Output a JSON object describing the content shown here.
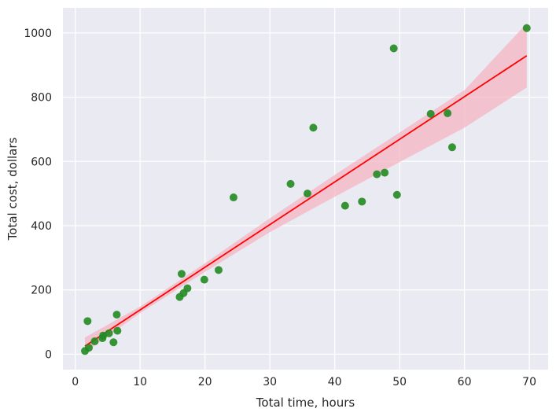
{
  "chart_data": {
    "type": "scatter",
    "title": "",
    "xlabel": "Total time, hours",
    "ylabel": "Total cost, dollars",
    "xlim": [
      -1.9,
      72.9
    ],
    "ylim": [
      -48,
      1078
    ],
    "xticks": [
      0,
      10,
      20,
      30,
      40,
      50,
      60,
      70
    ],
    "yticks": [
      0,
      200,
      400,
      600,
      800,
      1000
    ],
    "grid": true,
    "legend": "none",
    "colors": {
      "background": "#eaeaf2",
      "grid": "#ffffff",
      "points": "#228b22",
      "regression_line": "#ff0000",
      "confidence_band": "#f4b6c2"
    },
    "series": [
      {
        "points": [
          [
            1.5,
            10
          ],
          [
            2.1,
            20
          ],
          [
            1.9,
            103
          ],
          [
            3.0,
            40
          ],
          [
            4.2,
            50
          ],
          [
            4.3,
            58
          ],
          [
            5.2,
            65
          ],
          [
            5.9,
            37
          ],
          [
            6.5,
            73
          ],
          [
            6.4,
            123
          ],
          [
            16.1,
            178
          ],
          [
            16.7,
            190
          ],
          [
            16.4,
            250
          ],
          [
            17.3,
            205
          ],
          [
            19.9,
            232
          ],
          [
            22.1,
            262
          ],
          [
            24.4,
            488
          ],
          [
            33.2,
            530
          ],
          [
            35.8,
            500
          ],
          [
            36.7,
            705
          ],
          [
            41.6,
            462
          ],
          [
            44.2,
            475
          ],
          [
            46.5,
            560
          ],
          [
            47.7,
            565
          ],
          [
            49.1,
            952
          ],
          [
            49.6,
            496
          ],
          [
            54.8,
            748
          ],
          [
            57.4,
            750
          ],
          [
            58.1,
            644
          ],
          [
            69.6,
            1015
          ]
        ]
      }
    ],
    "regression": {
      "x": [
        1.5,
        69.6
      ],
      "y": [
        25,
        929
      ],
      "ci_x": [
        1.5,
        10,
        20,
        30,
        40,
        50,
        60,
        69.6
      ],
      "ci_lower": [
        5,
        128,
        256,
        380,
        490,
        598,
        705,
        830
      ],
      "ci_upper": [
        52,
        148,
        283,
        423,
        558,
        690,
        822,
        1030
      ]
    }
  }
}
